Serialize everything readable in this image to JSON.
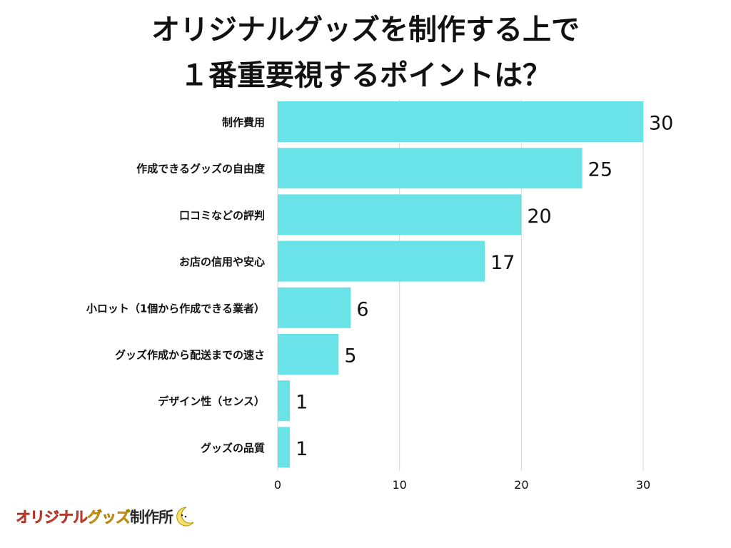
{
  "title": {
    "line1": "オリジナルグッズを制作する上で",
    "line2": "１番重要視するポイントは？"
  },
  "chart_data": {
    "type": "bar",
    "orientation": "horizontal",
    "categories": [
      "制作費用",
      "作成できるグッズの自由度",
      "口コミなどの評判",
      "お店の信用や安心",
      "小ロット（1個から作成できる業者）",
      "グッズ作成から配送までの速さ",
      "デザイン性（センス）",
      "グッズの品質"
    ],
    "values": [
      30,
      25,
      20,
      17,
      6,
      5,
      1,
      1
    ],
    "xlim": [
      0,
      30
    ],
    "xticks": [
      0,
      10,
      20,
      30
    ],
    "title": "オリジナルグッズを制作する上で１番重要視するポイントは？",
    "xlabel": "",
    "ylabel": "",
    "grid": true,
    "bar_color": "#6ae3e8"
  },
  "logo": {
    "part1": "オリジナル",
    "part2": "グッズ",
    "part3": "制作所",
    "colors": {
      "red": "#f15a4a",
      "yellow": "#f6c234"
    }
  }
}
